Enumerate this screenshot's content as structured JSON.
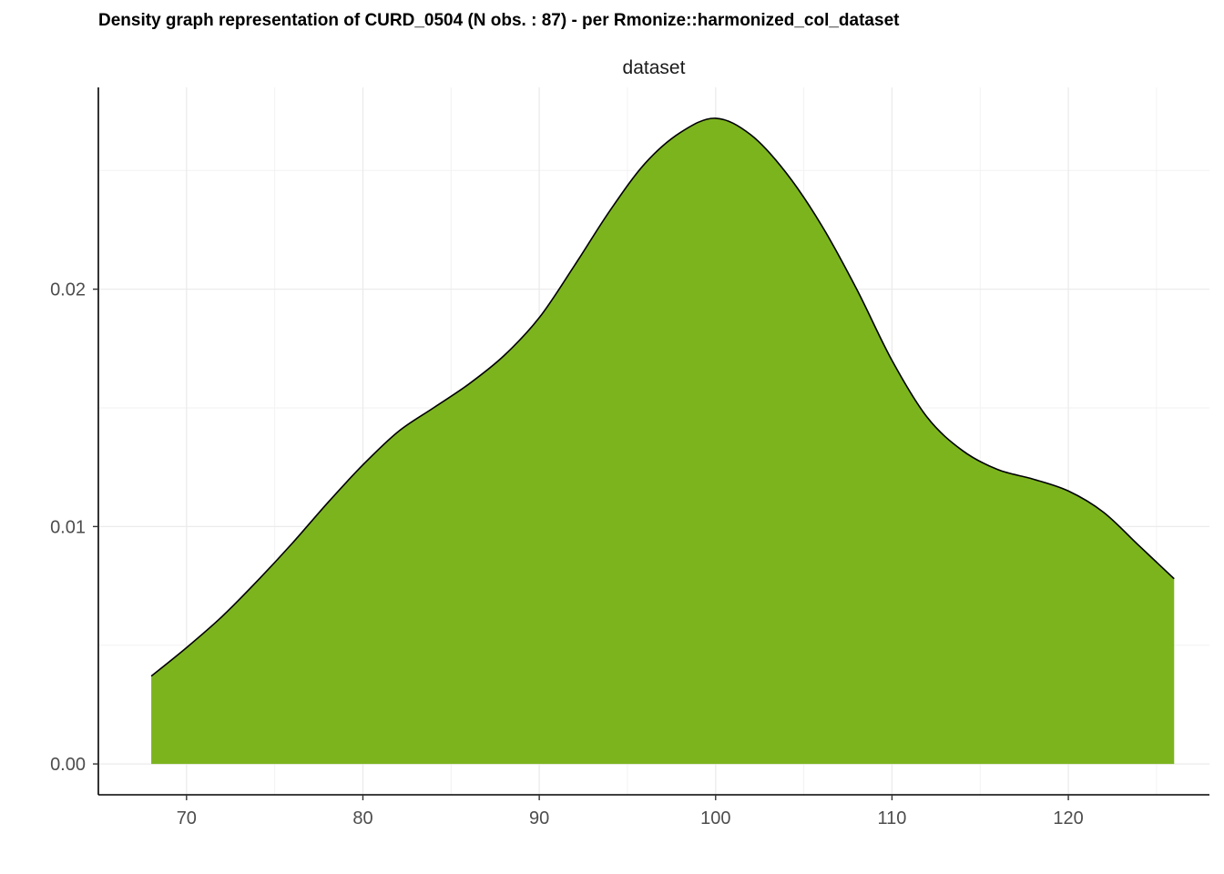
{
  "chart_data": {
    "type": "area",
    "title": "Density graph representation of CURD_0504 (N obs. : 87) - per Rmonize::harmonized_col_dataset",
    "facet_label": "dataset",
    "xlabel": "",
    "ylabel": "",
    "xlim": [
      65,
      128
    ],
    "ylim": [
      -0.0013,
      0.0285
    ],
    "x_ticks": [
      70,
      80,
      90,
      100,
      110,
      120
    ],
    "x_tick_labels": [
      "70",
      "80",
      "90",
      "100",
      "110",
      "120"
    ],
    "y_ticks": [
      0.0,
      0.01,
      0.02
    ],
    "y_tick_labels": [
      "0.00",
      "0.01",
      "0.02"
    ],
    "fill_color": "#7cb41e",
    "line_color": "#000000",
    "grid": true,
    "series": [
      {
        "x": [
          68,
          70,
          72,
          74,
          76,
          78,
          80,
          82,
          84,
          86,
          88,
          90,
          92,
          94,
          96,
          98,
          100,
          102,
          104,
          106,
          108,
          110,
          112,
          114,
          116,
          118,
          120,
          122,
          124,
          126
        ],
        "y": [
          0.0037,
          0.0049,
          0.0062,
          0.0077,
          0.0093,
          0.011,
          0.0126,
          0.014,
          0.015,
          0.016,
          0.0172,
          0.0188,
          0.021,
          0.0233,
          0.0253,
          0.0266,
          0.0272,
          0.0265,
          0.0249,
          0.0227,
          0.02,
          0.017,
          0.0146,
          0.0132,
          0.0124,
          0.012,
          0.0115,
          0.0106,
          0.0092,
          0.0078
        ]
      }
    ]
  }
}
